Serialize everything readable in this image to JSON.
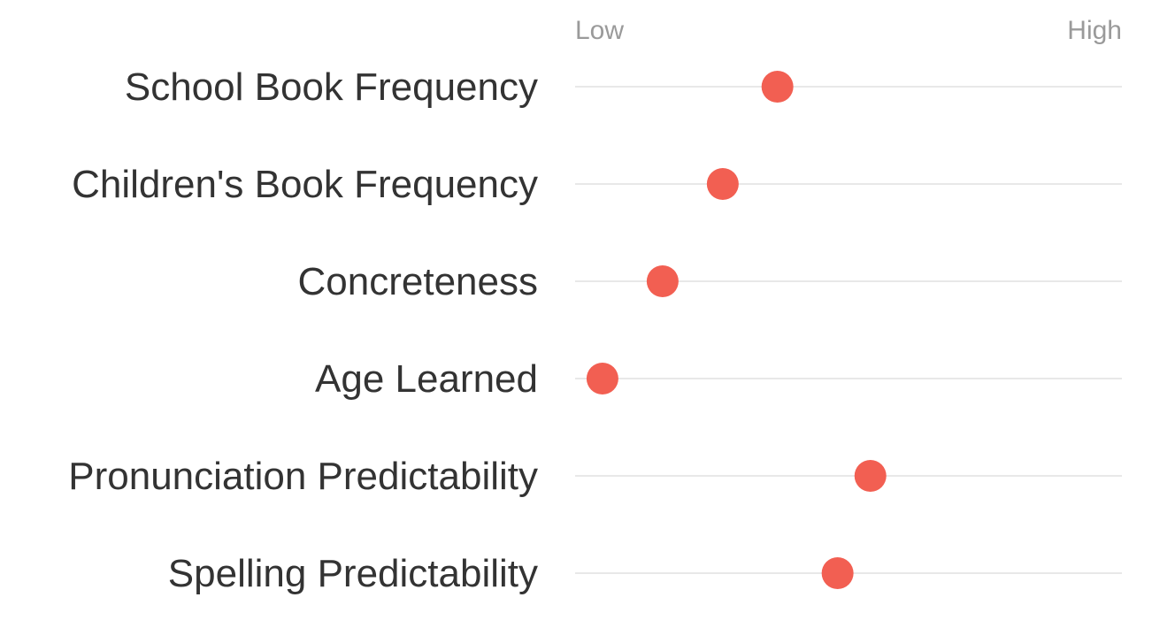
{
  "chart_data": {
    "type": "scatter",
    "scale_labels": {
      "low": "Low",
      "high": "High"
    },
    "categories": [
      "School Book Frequency",
      "Children's Book Frequency",
      "Concreteness",
      "Age Learned",
      "Pronunciation Predictability",
      "Spelling Predictability"
    ],
    "values": [
      0.37,
      0.27,
      0.16,
      0.05,
      0.54,
      0.48
    ],
    "xlim": [
      0,
      1
    ],
    "colors": {
      "dot": "#f25f52",
      "line": "#d9d9d9",
      "label": "#333333",
      "scale_label": "#9a9a9a"
    }
  }
}
